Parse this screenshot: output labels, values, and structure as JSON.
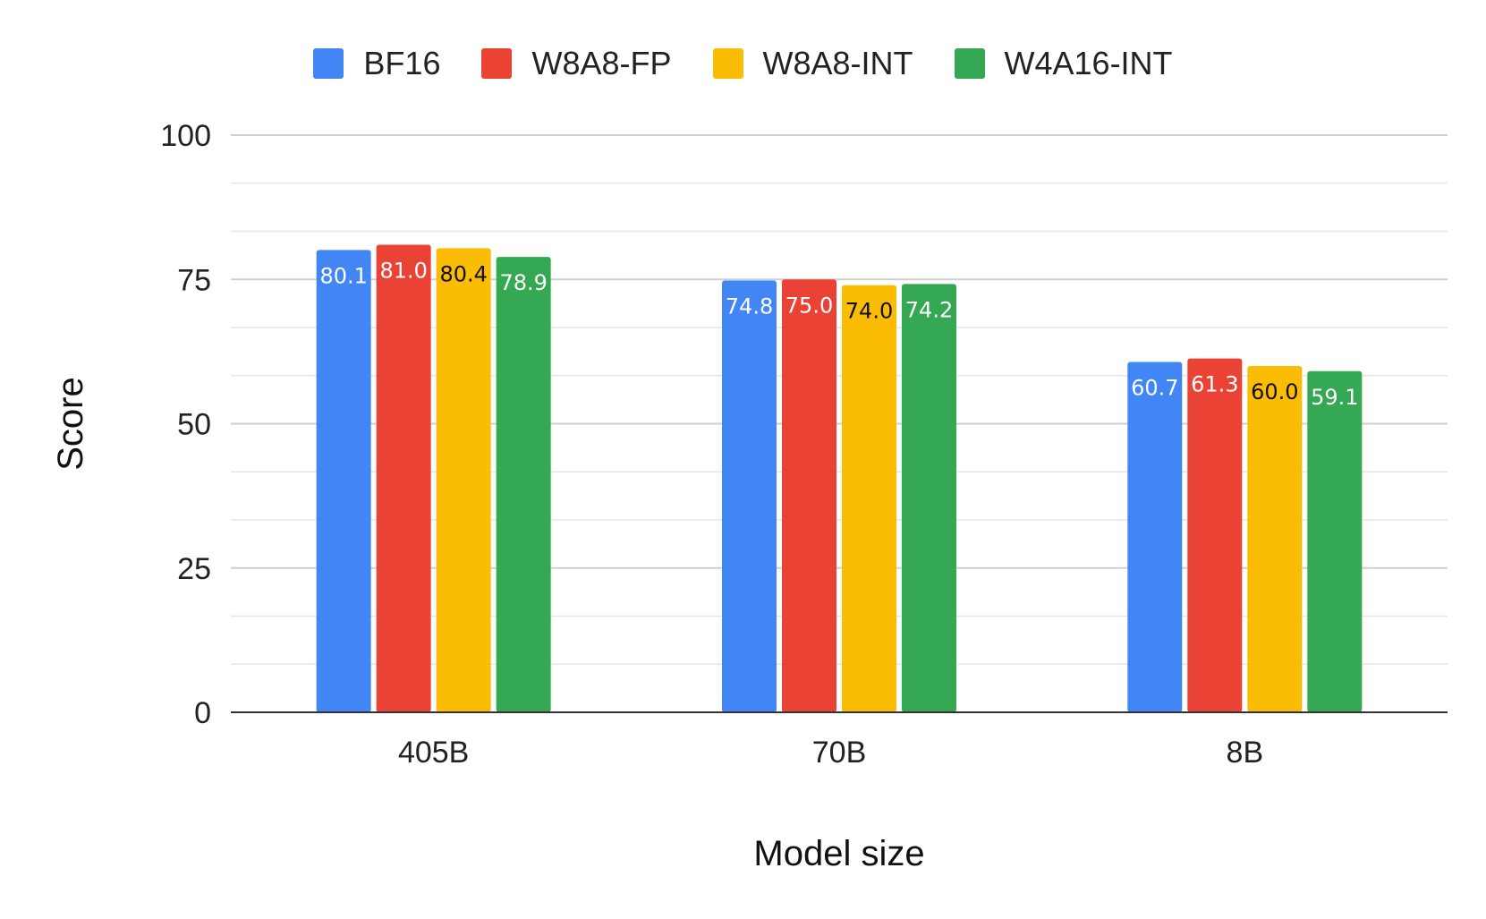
{
  "chart_data": {
    "type": "bar",
    "title": "",
    "xlabel": "Model size",
    "ylabel": "Score",
    "categories": [
      "405B",
      "70B",
      "8B"
    ],
    "series": [
      {
        "name": "BF16",
        "color": "#4285F4",
        "values": [
          80.1,
          74.8,
          60.7
        ],
        "label_color": "#ffffff"
      },
      {
        "name": "W8A8-FP",
        "color": "#EA4335",
        "values": [
          81.0,
          75.0,
          61.3
        ],
        "label_color": "#ffffff"
      },
      {
        "name": "W8A8-INT",
        "color": "#FBBC04",
        "values": [
          80.4,
          74.0,
          60.0
        ],
        "label_color": "#111111"
      },
      {
        "name": "W4A16-INT",
        "color": "#34A853",
        "values": [
          78.9,
          74.2,
          59.1
        ],
        "label_color": "#ffffff"
      }
    ],
    "value_labels": [
      [
        "80.1",
        "74.8",
        "60.7"
      ],
      [
        "81.0",
        "75.0",
        "61.3"
      ],
      [
        "80.4",
        "74.0",
        "60.0"
      ],
      [
        "78.9",
        "74.2",
        "59.1"
      ]
    ],
    "ylim": [
      0,
      100
    ],
    "yticks": [
      0,
      25,
      50,
      75,
      100
    ],
    "ytick_labels": [
      "0",
      "25",
      "50",
      "75",
      "100"
    ],
    "minor_gridlines": true,
    "grid": true,
    "legend_position": "top-center"
  }
}
